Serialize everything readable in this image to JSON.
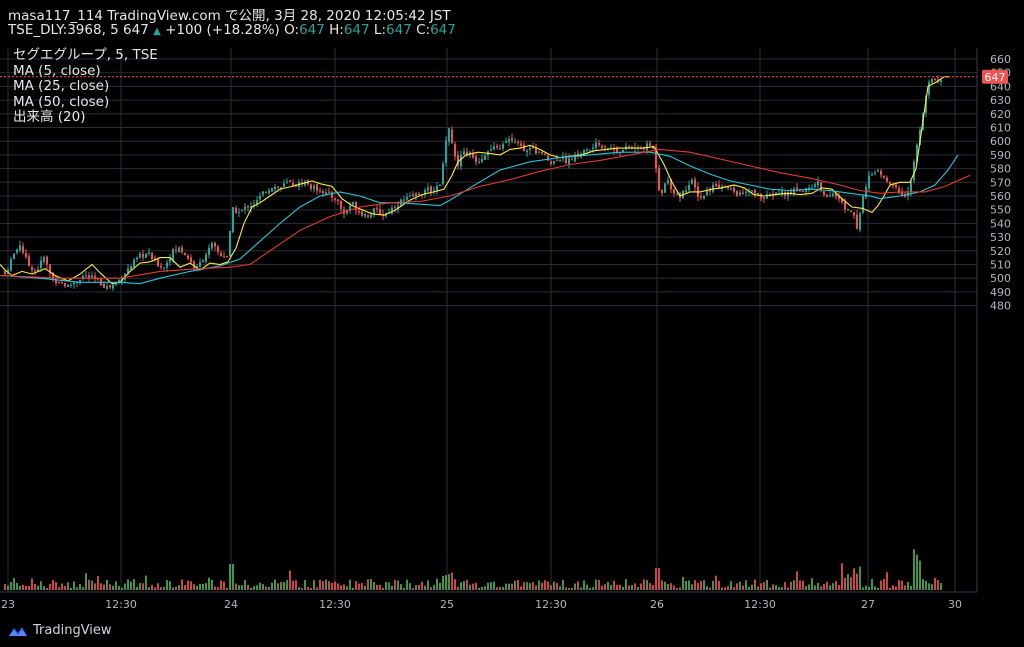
{
  "header": {
    "line1": "masa117_114 TradingView.com で公開, 3月 28, 2020 12:05:42 JST",
    "symbol_info": "TSE_DLY:3968, 5",
    "last_price": "647",
    "change_arrow": "▲",
    "change": "+100 (+18.28%)",
    "o_label": "O:",
    "o_value": "647",
    "h_label": "H:",
    "h_value": "647",
    "l_label": "L:",
    "l_value": "647",
    "c_label": "C:",
    "c_value": "647"
  },
  "legend": {
    "title": "セグエグループ, 5, TSE",
    "ma5": "MA (5, close)",
    "ma25": "MA (25, close)",
    "ma50": "MA (50, close)",
    "volume": "出来高 (20)"
  },
  "footer": {
    "brand": "TradingView"
  },
  "colors": {
    "up": "#26a69a",
    "down": "#ef5350",
    "vol_up": "#4caf50",
    "vol_down": "#ef5350",
    "ma5": "#ffeb3b",
    "ma25": "#26c6da",
    "ma50": "#e53935",
    "grid": "#2a2e39",
    "price_label_bg": "#ef5350"
  },
  "chart_data": {
    "type": "candlestick",
    "y_axis": {
      "min": 470,
      "max": 665,
      "ticks": [
        480,
        490,
        500,
        510,
        520,
        530,
        540,
        550,
        560,
        570,
        580,
        590,
        600,
        610,
        620,
        630,
        640,
        650,
        660
      ]
    },
    "x_axis": {
      "labels": [
        "23",
        "12:30",
        "24",
        "12:30",
        "25",
        "12:30",
        "26",
        "12:30",
        "27",
        "30"
      ]
    },
    "current_price": "647",
    "ma_lines": [
      {
        "name": "MA (5, close)",
        "points": [
          [
            0,
            510
          ],
          [
            5,
            506
          ],
          [
            12,
            502
          ],
          [
            22,
            505
          ],
          [
            32,
            503
          ],
          [
            45,
            507
          ],
          [
            55,
            502
          ],
          [
            68,
            498
          ],
          [
            80,
            503
          ],
          [
            92,
            510
          ],
          [
            100,
            504
          ],
          [
            112,
            496
          ],
          [
            120,
            497
          ],
          [
            130,
            505
          ],
          [
            140,
            511
          ],
          [
            150,
            512
          ],
          [
            160,
            515
          ],
          [
            170,
            515
          ],
          [
            180,
            508
          ],
          [
            190,
            511
          ],
          [
            200,
            506
          ],
          [
            210,
            511
          ],
          [
            220,
            510
          ],
          [
            228,
            512
          ],
          [
            236,
            522
          ],
          [
            244,
            540
          ],
          [
            252,
            552
          ],
          [
            260,
            555
          ],
          [
            270,
            560
          ],
          [
            280,
            565
          ],
          [
            292,
            567
          ],
          [
            302,
            569
          ],
          [
            312,
            571
          ],
          [
            320,
            569
          ],
          [
            332,
            567
          ],
          [
            342,
            558
          ],
          [
            352,
            553
          ],
          [
            362,
            550
          ],
          [
            372,
            547
          ],
          [
            384,
            546
          ],
          [
            396,
            550
          ],
          [
            410,
            557
          ],
          [
            422,
            561
          ],
          [
            434,
            563
          ],
          [
            444,
            565
          ],
          [
            452,
            575
          ],
          [
            458,
            585
          ],
          [
            466,
            590
          ],
          [
            478,
            592
          ],
          [
            490,
            591
          ],
          [
            500,
            590
          ],
          [
            510,
            594
          ],
          [
            520,
            595
          ],
          [
            530,
            597
          ],
          [
            540,
            594
          ],
          [
            550,
            590
          ],
          [
            560,
            588
          ],
          [
            570,
            589
          ],
          [
            582,
            590
          ],
          [
            594,
            593
          ],
          [
            606,
            594
          ],
          [
            618,
            595
          ],
          [
            630,
            595
          ],
          [
            642,
            595
          ],
          [
            654,
            596
          ],
          [
            664,
            583
          ],
          [
            672,
            570
          ],
          [
            680,
            560
          ],
          [
            690,
            563
          ],
          [
            700,
            563
          ],
          [
            712,
            565
          ],
          [
            722,
            566
          ],
          [
            734,
            568
          ],
          [
            744,
            566
          ],
          [
            754,
            561
          ],
          [
            764,
            560
          ],
          [
            776,
            561
          ],
          [
            788,
            562
          ],
          [
            800,
            561
          ],
          [
            812,
            562
          ],
          [
            822,
            566
          ],
          [
            832,
            565
          ],
          [
            842,
            558
          ],
          [
            852,
            552
          ],
          [
            862,
            551
          ],
          [
            872,
            548
          ],
          [
            878,
            553
          ],
          [
            884,
            560
          ],
          [
            890,
            568
          ],
          [
            900,
            570
          ],
          [
            910,
            570
          ],
          [
            916,
            580
          ],
          [
            922,
            610
          ],
          [
            928,
            640
          ],
          [
            936,
            643
          ],
          [
            944,
            647
          ],
          [
            950,
            647
          ]
        ]
      },
      {
        "name": "MA (25, close)",
        "points": [
          [
            0,
            502
          ],
          [
            40,
            500
          ],
          [
            80,
            497
          ],
          [
            120,
            497
          ],
          [
            140,
            496
          ],
          [
            160,
            500
          ],
          [
            190,
            505
          ],
          [
            220,
            509
          ],
          [
            240,
            514
          ],
          [
            260,
            527
          ],
          [
            280,
            540
          ],
          [
            300,
            552
          ],
          [
            320,
            560
          ],
          [
            340,
            563
          ],
          [
            360,
            560
          ],
          [
            380,
            555
          ],
          [
            400,
            555
          ],
          [
            420,
            554
          ],
          [
            440,
            553
          ],
          [
            450,
            557
          ],
          [
            470,
            566
          ],
          [
            500,
            579
          ],
          [
            530,
            585
          ],
          [
            560,
            588
          ],
          [
            590,
            590
          ],
          [
            620,
            592
          ],
          [
            650,
            592
          ],
          [
            670,
            589
          ],
          [
            690,
            582
          ],
          [
            710,
            576
          ],
          [
            730,
            571
          ],
          [
            750,
            568
          ],
          [
            770,
            565
          ],
          [
            790,
            564
          ],
          [
            810,
            565
          ],
          [
            830,
            564
          ],
          [
            850,
            562
          ],
          [
            870,
            560
          ],
          [
            880,
            558
          ],
          [
            900,
            560
          ],
          [
            920,
            563
          ],
          [
            935,
            568
          ],
          [
            948,
            579
          ],
          [
            958,
            590
          ]
        ]
      },
      {
        "name": "MA (50, close)",
        "points": [
          [
            0,
            502
          ],
          [
            60,
            500
          ],
          [
            120,
            500
          ],
          [
            160,
            505
          ],
          [
            200,
            507
          ],
          [
            230,
            508
          ],
          [
            250,
            510
          ],
          [
            270,
            520
          ],
          [
            300,
            535
          ],
          [
            330,
            545
          ],
          [
            360,
            552
          ],
          [
            390,
            555
          ],
          [
            420,
            556
          ],
          [
            450,
            560
          ],
          [
            480,
            567
          ],
          [
            510,
            572
          ],
          [
            540,
            578
          ],
          [
            570,
            583
          ],
          [
            600,
            586
          ],
          [
            630,
            590
          ],
          [
            660,
            594
          ],
          [
            690,
            592
          ],
          [
            720,
            587
          ],
          [
            750,
            582
          ],
          [
            780,
            577
          ],
          [
            810,
            573
          ],
          [
            840,
            568
          ],
          [
            860,
            564
          ],
          [
            880,
            562
          ],
          [
            900,
            563
          ],
          [
            925,
            563
          ],
          [
            945,
            567
          ],
          [
            970,
            575
          ]
        ]
      }
    ],
    "volume_axis_max": 120,
    "notable_values": {
      "gap_up_high": "619",
      "low_spike": "527",
      "session_high": "647"
    }
  }
}
